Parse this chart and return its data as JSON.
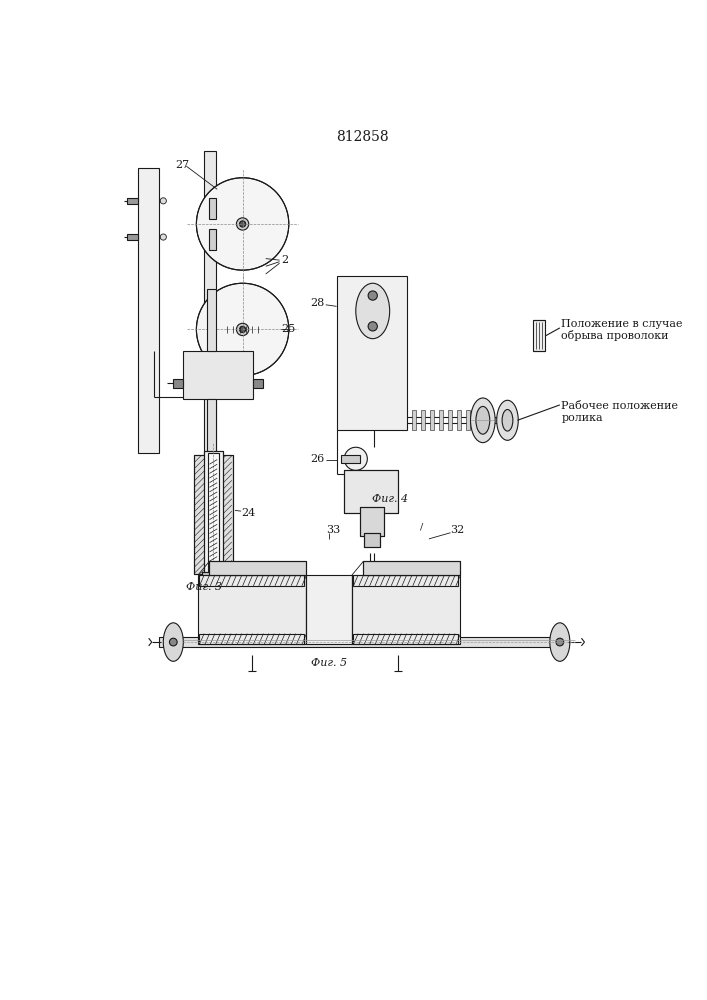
{
  "title": "812858",
  "bg": "#ffffff",
  "lc": "#1a1a1a",
  "fig3_label": "Фиг. 3",
  "fig4_label": "Фиг. 4",
  "fig5_label": "Фиг. 5",
  "lbl_27": "27",
  "lbl_2": "2",
  "lbl_25": "25",
  "lbl_24": "24",
  "lbl_28": "28",
  "lbl_26": "26",
  "lbl_32": "32",
  "lbl_33": "33",
  "txt1": "Положение в случае\nобрыва проволоки",
  "txt2": "Рабочее положение\nролика",
  "fs_title": 10,
  "fs_lbl": 8,
  "fs_italic": 8
}
